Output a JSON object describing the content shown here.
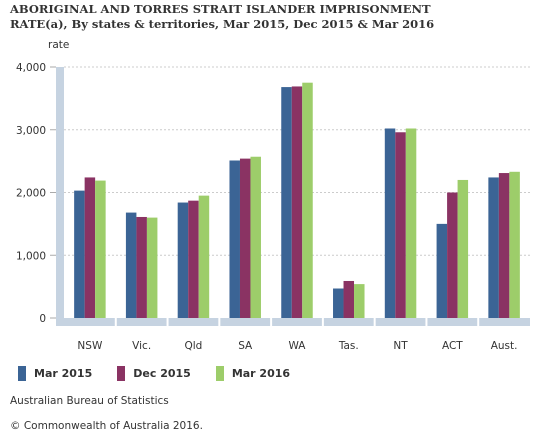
{
  "title": "ABORIGINAL AND TORRES STRAIT ISLANDER IMPRISONMENT RATE(a), By states & territories, Mar 2015, Dec 2015 & Mar 2016",
  "source": "Australian Bureau of Statistics",
  "copyright": "© Commonwealth of Australia 2016.",
  "colors": {
    "Mar 2015": "#3b6495",
    "Dec 2015": "#8a3363",
    "Mar 2016": "#9dcd6a",
    "axis": "#c6d3e1"
  },
  "chart_data": {
    "type": "bar",
    "ylabel": "rate",
    "xlabel": "",
    "ylim": [
      0,
      4000
    ],
    "yticks": [
      0,
      1000,
      2000,
      3000,
      4000
    ],
    "ytick_labels": [
      "0",
      "1,000",
      "2,000",
      "3,000",
      "4,000"
    ],
    "categories": [
      "NSW",
      "Vic.",
      "Qld",
      "SA",
      "WA",
      "Tas.",
      "NT",
      "ACT",
      "Aust."
    ],
    "series": [
      {
        "name": "Mar 2015",
        "values": [
          2030,
          1680,
          1840,
          2510,
          3680,
          470,
          3020,
          1500,
          2240
        ]
      },
      {
        "name": "Dec 2015",
        "values": [
          2240,
          1610,
          1870,
          2540,
          3690,
          590,
          2960,
          2000,
          2310
        ]
      },
      {
        "name": "Mar 2016",
        "values": [
          2190,
          1600,
          1950,
          2570,
          3750,
          540,
          3020,
          2200,
          2330
        ]
      }
    ],
    "legend_position": "bottom"
  }
}
